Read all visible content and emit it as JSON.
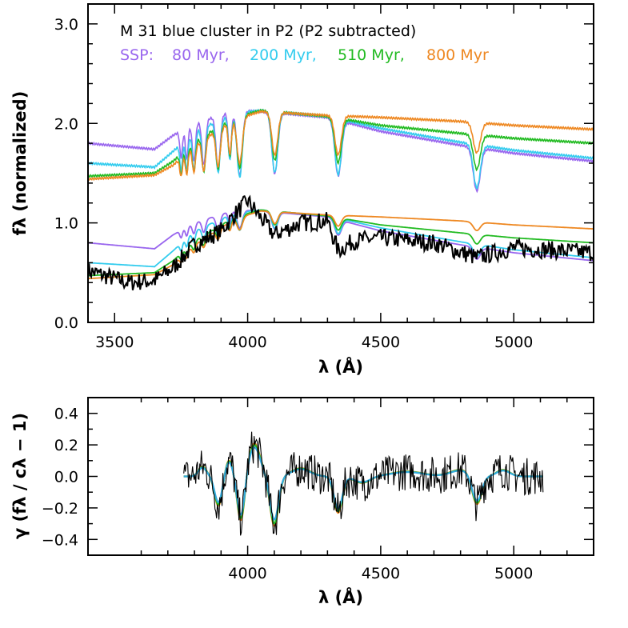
{
  "chart_data": [
    {
      "type": "line",
      "title": "M 31 blue cluster in P2 (P2 subtracted)",
      "legend_prefix": "SSP:",
      "xlabel": "λ (Å)",
      "ylabel": "fλ (normalized)",
      "xlim": [
        3400,
        5300
      ],
      "ylim": [
        0.0,
        3.2
      ],
      "x_ticks": [
        3500,
        4000,
        4500,
        5000
      ],
      "x_tick_labels": [
        "3500",
        "4000",
        "4500",
        "5000"
      ],
      "y_ticks": [
        0.0,
        1.0,
        2.0,
        3.0
      ],
      "y_tick_labels": [
        "0.0",
        "1.0",
        "2.0",
        "3.0"
      ],
      "series": [
        {
          "name": "80 Myr",
          "label": "80 Myr,",
          "color": "#9966ee"
        },
        {
          "name": "200 Myr",
          "label": "200 Myr,",
          "color": "#33ccee"
        },
        {
          "name": "510 Myr",
          "label": "510 Myr,",
          "color": "#22bb22"
        },
        {
          "name": "800 Myr",
          "label": "800 Myr",
          "color": "#ee8822"
        },
        {
          "name": "observed",
          "label": "",
          "color": "#000000"
        }
      ],
      "templates_offset": 1.0,
      "continuum": {
        "80 Myr": {
          "x": [
            3400,
            3650,
            3720,
            3800,
            3950,
            4050,
            4300,
            4500,
            4800,
            5000,
            5300
          ],
          "y": [
            0.8,
            0.74,
            0.88,
            1.0,
            1.13,
            1.12,
            1.06,
            0.92,
            0.78,
            0.7,
            0.62
          ]
        },
        "200 Myr": {
          "x": [
            3400,
            3650,
            3720,
            3800,
            3950,
            4050,
            4300,
            4500,
            4800,
            5000,
            5300
          ],
          "y": [
            0.6,
            0.56,
            0.72,
            0.92,
            1.1,
            1.13,
            1.07,
            0.95,
            0.81,
            0.73,
            0.65
          ]
        },
        "510 Myr": {
          "x": [
            3400,
            3650,
            3720,
            3800,
            3950,
            4050,
            4300,
            4500,
            4800,
            5000,
            5300
          ],
          "y": [
            0.47,
            0.5,
            0.62,
            0.82,
            1.06,
            1.13,
            1.07,
            0.98,
            0.9,
            0.85,
            0.8
          ]
        },
        "800 Myr": {
          "x": [
            3400,
            3650,
            3720,
            3800,
            3950,
            4050,
            4300,
            4500,
            4800,
            5000,
            5300
          ],
          "y": [
            0.44,
            0.48,
            0.58,
            0.78,
            1.04,
            1.12,
            1.08,
            1.06,
            1.02,
            0.98,
            0.94
          ]
        }
      },
      "absorption_lines": [
        {
          "x": 3750,
          "depth": 0.3,
          "width": 5
        },
        {
          "x": 3771,
          "depth": 0.35,
          "width": 5
        },
        {
          "x": 3798,
          "depth": 0.42,
          "width": 6
        },
        {
          "x": 3835,
          "depth": 0.5,
          "width": 7
        },
        {
          "x": 3889,
          "depth": 0.58,
          "width": 8
        },
        {
          "x": 3933,
          "depth": 0.5,
          "width": 6
        },
        {
          "x": 3970,
          "depth": 0.72,
          "width": 10
        },
        {
          "x": 4102,
          "depth": 0.68,
          "width": 11
        },
        {
          "x": 4340,
          "depth": 0.62,
          "width": 12
        },
        {
          "x": 4861,
          "depth": 0.48,
          "width": 13
        }
      ],
      "observed_anchor": {
        "x": [
          3400,
          3550,
          3650,
          3720,
          3800,
          3900,
          3950,
          4000,
          4100,
          4200,
          4300,
          4340,
          4400,
          4500,
          4700,
          4860,
          5000,
          5300
        ],
        "y": [
          0.52,
          0.4,
          0.42,
          0.55,
          0.78,
          0.92,
          1.08,
          1.22,
          0.88,
          1.0,
          1.02,
          0.72,
          0.82,
          0.85,
          0.8,
          0.65,
          0.75,
          0.7
        ]
      },
      "observed_noise": 0.09
    },
    {
      "type": "line",
      "xlabel": "λ (Å)",
      "ylabel": "γ (fλ / cλ − 1)",
      "xlim": [
        3400,
        5300
      ],
      "ylim": [
        -0.5,
        0.5
      ],
      "x_ticks": [
        4000,
        4500,
        5000
      ],
      "x_tick_labels": [
        "4000",
        "4500",
        "5000"
      ],
      "y_ticks": [
        -0.4,
        -0.2,
        0.0,
        0.2,
        0.4
      ],
      "y_tick_labels": [
        "−0.4",
        "−0.2",
        "0.0",
        "0.2",
        "0.4"
      ],
      "x_range": [
        3760,
        5110
      ],
      "features": [
        {
          "x": 3830,
          "a": 0.06,
          "w": 15
        },
        {
          "x": 3890,
          "a": -0.18,
          "w": 14
        },
        {
          "x": 3930,
          "a": 0.1,
          "w": 14
        },
        {
          "x": 3975,
          "a": -0.28,
          "w": 14
        },
        {
          "x": 4025,
          "a": 0.2,
          "w": 22
        },
        {
          "x": 4100,
          "a": -0.3,
          "w": 16
        },
        {
          "x": 4200,
          "a": 0.05,
          "w": 35
        },
        {
          "x": 4340,
          "a": -0.22,
          "w": 16
        },
        {
          "x": 4430,
          "a": -0.04,
          "w": 30
        },
        {
          "x": 4600,
          "a": 0.03,
          "w": 60
        },
        {
          "x": 4800,
          "a": 0.04,
          "w": 40
        },
        {
          "x": 4861,
          "a": -0.18,
          "w": 18
        },
        {
          "x": 4960,
          "a": 0.04,
          "w": 25
        }
      ],
      "series": [
        {
          "name": "800 Myr",
          "color": "#ee8822",
          "scale": 1.05
        },
        {
          "name": "510 Myr",
          "color": "#22bb22",
          "scale": 1.0
        },
        {
          "name": "200 Myr",
          "color": "#33aadd",
          "scale": 0.92
        },
        {
          "name": "observed",
          "color": "#000000",
          "scale": 1.0
        }
      ],
      "observed_noise": 0.12
    }
  ]
}
